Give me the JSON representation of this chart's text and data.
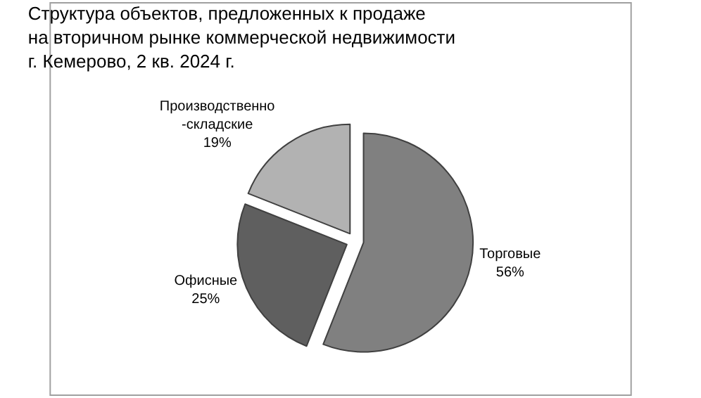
{
  "chart_data": {
    "type": "pie",
    "title": "Структура объектов, предложенных к продаже\nна вторичном рынке коммерческой недвижимости\nг. Кемерово, 2 кв. 2024 г.",
    "categories": [
      "Торговые",
      "Офисные",
      "Производственно-складские"
    ],
    "values": [
      56,
      25,
      19
    ],
    "colors": [
      "#808080",
      "#5f5f5f",
      "#b2b2b2"
    ],
    "value_labels": [
      "56%",
      "25%",
      "19%"
    ],
    "legend": false
  }
}
